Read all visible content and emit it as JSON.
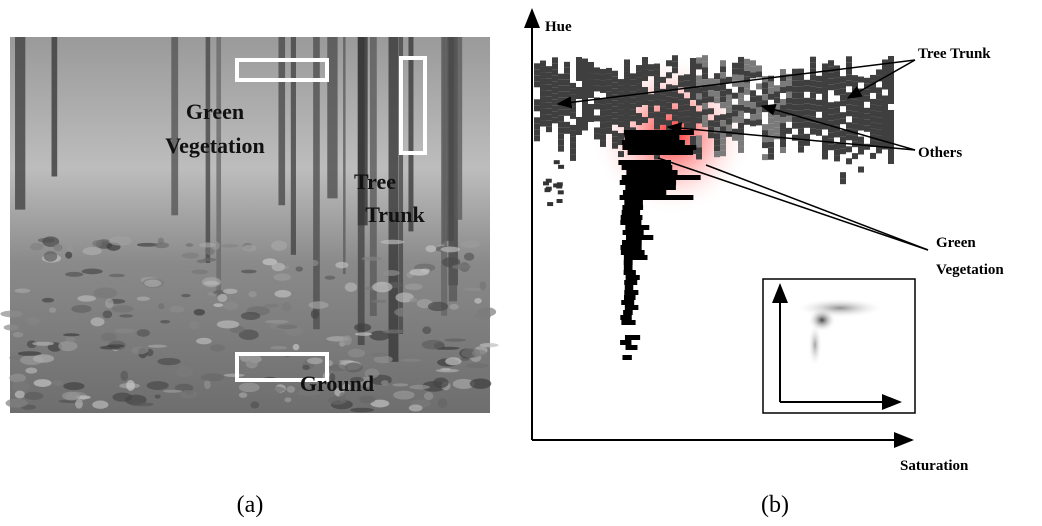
{
  "panel_a": {
    "labels": [
      {
        "lines": [
          "Green",
          "Vegetation"
        ]
      },
      {
        "lines": [
          "Tree",
          "Trunk"
        ]
      },
      {
        "lines": [
          "Ground"
        ]
      }
    ],
    "caption": "(a)"
  },
  "panel_b": {
    "y_axis_label": "Hue",
    "x_axis_label": "Saturation",
    "annotations": [
      {
        "lines": [
          "Tree Trunk"
        ]
      },
      {
        "lines": [
          "Others"
        ]
      },
      {
        "lines": [
          "Green",
          "Vegetation"
        ]
      }
    ],
    "caption": "(b)"
  }
}
